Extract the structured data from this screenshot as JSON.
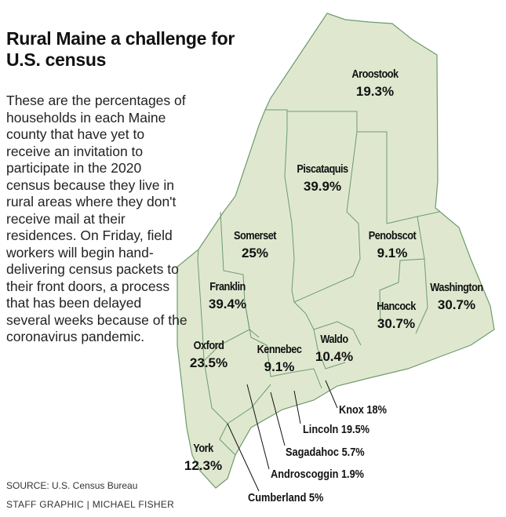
{
  "title": "Rural Maine a challenge for U.S. census",
  "description": "These are the percentages of households in each Maine county that have yet to receive an invitation to participate in the 2020 census because they live in rural areas where they don't receive mail at their residences. On Friday, field workers will begin hand-delivering census packets to their front doors, a process that has been delayed several weeks because of the coronavirus pandemic.",
  "source": "SOURCE: U.S. Census Bureau",
  "credit": "STAFF GRAPHIC | MICHAEL FISHER",
  "colors": {
    "land": "#dfe8cf",
    "border": "#6f9a6f"
  },
  "counties": [
    {
      "name": "Aroostook",
      "value": "19.3%"
    },
    {
      "name": "Piscataquis",
      "value": "39.9%"
    },
    {
      "name": "Somerset",
      "value": "25%"
    },
    {
      "name": "Penobscot",
      "value": "9.1%"
    },
    {
      "name": "Franklin",
      "value": "39.4%"
    },
    {
      "name": "Washington",
      "value": "30.7%"
    },
    {
      "name": "Hancock",
      "value": "30.7%"
    },
    {
      "name": "Oxford",
      "value": "23.5%"
    },
    {
      "name": "Kennebec",
      "value": "9.1%"
    },
    {
      "name": "Waldo",
      "value": "10.4%"
    },
    {
      "name": "York",
      "value": "12.3%"
    }
  ],
  "callouts": [
    {
      "label": "Knox 18%"
    },
    {
      "label": "Lincoln 19.5%"
    },
    {
      "label": "Sagadahoc 5.7%"
    },
    {
      "label": "Androscoggin 1.9%"
    },
    {
      "label": "Cumberland 5%"
    }
  ]
}
